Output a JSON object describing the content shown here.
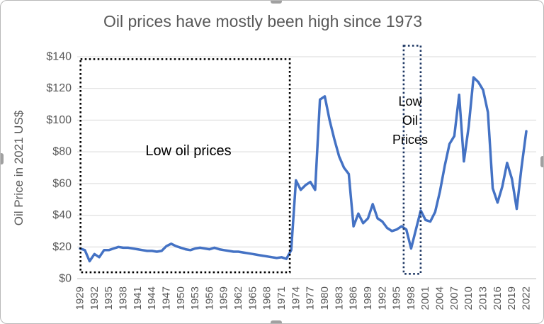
{
  "colors": {
    "line": "#4472C4",
    "grid": "#D9D9D9",
    "baseline": "#BFBFBF",
    "axis_text": "#595959",
    "title_text": "#595959",
    "annotation_text": "#000000",
    "big_box": "#000000",
    "small_box": "#1F3864"
  },
  "chart_data": {
    "type": "line",
    "title": "Oil prices have mostly been high since 1973",
    "xlabel": "",
    "ylabel": "Oil Price in 2021 US$",
    "legend": "none",
    "grid": "horizontal",
    "ylim": [
      0,
      140
    ],
    "ytick_step": 20,
    "ytick_labels": [
      "$0",
      "$20",
      "$40",
      "$60",
      "$80",
      "$100",
      "$120",
      "$140"
    ],
    "xtick_labels": [
      "1929",
      "1932",
      "1935",
      "1938",
      "1941",
      "1944",
      "1947",
      "1950",
      "1953",
      "1956",
      "1959",
      "1962",
      "1965",
      "1968",
      "1971",
      "1974",
      "1977",
      "1980",
      "1983",
      "1986",
      "1989",
      "1992",
      "1995",
      "1998",
      "2001",
      "2004",
      "2007",
      "2010",
      "2013",
      "2016",
      "2019",
      "2022"
    ],
    "x_start": 1929,
    "x_end": 2022,
    "series_name": "Oil Price in 2021 US$",
    "values": [
      19,
      18,
      11,
      15.5,
      13.5,
      18,
      18,
      19,
      20,
      19.5,
      19.5,
      19,
      18.5,
      18,
      17.5,
      17.5,
      17,
      17.5,
      20.5,
      22,
      20.5,
      19.5,
      18.5,
      18,
      19,
      19.5,
      19,
      18.5,
      19.5,
      18.5,
      18,
      17.5,
      17,
      17,
      16.5,
      16,
      15.5,
      15,
      14.5,
      14,
      13.5,
      13,
      13.5,
      12.5,
      18,
      62,
      56,
      59,
      61,
      56,
      113,
      115,
      100,
      88,
      77,
      70,
      66,
      33,
      41,
      35,
      38,
      47,
      38,
      36,
      32,
      30,
      31,
      33,
      31,
      19,
      31,
      43,
      37,
      36,
      42,
      55,
      71,
      85,
      90,
      116,
      74,
      96,
      127,
      124,
      119,
      105,
      57,
      48,
      58,
      73,
      63,
      44,
      70,
      93
    ],
    "boxes": [
      {
        "name": "low-oil-prices-box",
        "x_range": [
          1929.1,
          1972.7
        ],
        "y_range": [
          4,
          138.5
        ],
        "style": "dotted",
        "color": "#000000"
      },
      {
        "name": "low-oil-prices-1998-box",
        "x_range": [
          1996.45,
          2000.0
        ],
        "y_range": [
          3,
          147
        ],
        "style": "dotted",
        "color": "#1F3864"
      }
    ],
    "annotations": [
      {
        "id": "low-period",
        "text": "Low oil prices",
        "x": 1951.5,
        "y": 80
      },
      {
        "id": "low-1998",
        "lines": [
          "Low",
          "Oil",
          "Prices"
        ],
        "x": 1997.6,
        "y": 99
      }
    ]
  }
}
